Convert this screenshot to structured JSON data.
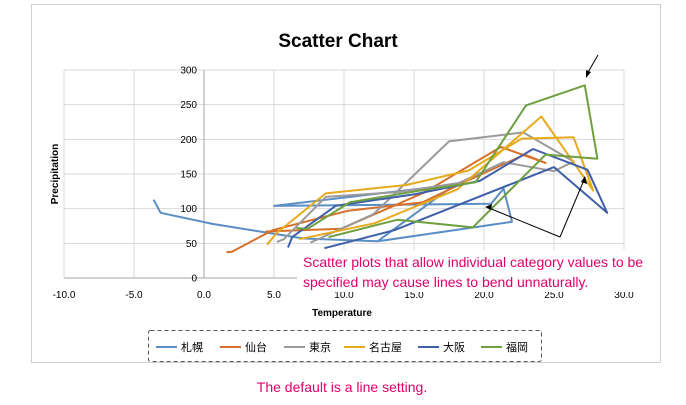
{
  "chart_data": {
    "type": "scatter",
    "title": "Scatter Chart",
    "xlabel": "Temperature",
    "ylabel": "Precipitation",
    "xlim": [
      -10,
      30
    ],
    "ylim": [
      0,
      300
    ],
    "xticks": [
      -10,
      -5,
      0,
      5,
      10,
      15,
      20,
      25,
      30
    ],
    "yticks": [
      0,
      50,
      100,
      150,
      200,
      250,
      300
    ],
    "xtick_labels": [
      "-10.0",
      "-5.0",
      "0.0",
      "5.0",
      "10.0",
      "15.0",
      "20.0",
      "25.0",
      "30.0"
    ],
    "ytick_labels": [
      "0",
      "50",
      "100",
      "150",
      "200",
      "250",
      "300"
    ],
    "grid": true,
    "legend_position": "bottom",
    "series": [
      {
        "name": "札幌",
        "color": "#5b8ec4",
        "points": [
          [
            -3.6,
            113
          ],
          [
            -3.1,
            94
          ],
          [
            0.6,
            78
          ],
          [
            7.1,
            57
          ],
          [
            12.4,
            53
          ],
          [
            18.0,
            136
          ],
          [
            17.6,
            134
          ],
          [
            5.0,
            104
          ],
          [
            20.5,
            107
          ],
          [
            21.4,
            129
          ],
          [
            22.0,
            81
          ],
          [
            12.4,
            53
          ]
        ]
      },
      {
        "name": "仙台",
        "color": "#d6702a",
        "points": [
          [
            1.6,
            37
          ],
          [
            2.0,
            38
          ],
          [
            4.9,
            69
          ],
          [
            10.3,
            97
          ],
          [
            15.6,
            109
          ],
          [
            19.2,
            144
          ],
          [
            22.9,
            178
          ],
          [
            24.4,
            166
          ],
          [
            21.2,
            189
          ],
          [
            15.7,
            123
          ],
          [
            9.8,
            71
          ],
          [
            4.4,
            67
          ]
        ]
      },
      {
        "name": "東京",
        "color": "#9a9a9a",
        "points": [
          [
            5.2,
            52
          ],
          [
            5.7,
            56
          ],
          [
            8.7,
            117
          ],
          [
            13.9,
            124
          ],
          [
            18.2,
            137
          ],
          [
            21.4,
            167
          ],
          [
            25.0,
            154
          ],
          [
            26.4,
            168
          ],
          [
            22.8,
            210
          ],
          [
            17.5,
            197
          ],
          [
            12.1,
            92
          ],
          [
            7.6,
            51
          ]
        ]
      },
      {
        "name": "名古屋",
        "color": "#e6aa1c",
        "points": [
          [
            4.5,
            48
          ],
          [
            5.2,
            65
          ],
          [
            8.7,
            122
          ],
          [
            14.4,
            134
          ],
          [
            18.9,
            155
          ],
          [
            22.7,
            201
          ],
          [
            26.4,
            203
          ],
          [
            27.8,
            126
          ],
          [
            24.1,
            233
          ],
          [
            18.1,
            128
          ],
          [
            12.2,
            79
          ],
          [
            6.8,
            56
          ]
        ]
      },
      {
        "name": "大阪",
        "color": "#3f5fa8",
        "points": [
          [
            6.0,
            44
          ],
          [
            6.3,
            59
          ],
          [
            9.4,
            104
          ],
          [
            15.1,
            121
          ],
          [
            19.7,
            140
          ],
          [
            23.5,
            186
          ],
          [
            27.4,
            156
          ],
          [
            28.8,
            94
          ],
          [
            25.0,
            160
          ],
          [
            19.0,
            112
          ],
          [
            13.6,
            69
          ],
          [
            8.6,
            43
          ]
        ]
      },
      {
        "name": "福岡",
        "color": "#6fa040",
        "points": [
          [
            6.6,
            72
          ],
          [
            7.4,
            71
          ],
          [
            10.4,
            109
          ],
          [
            15.1,
            125
          ],
          [
            19.4,
            138
          ],
          [
            23.0,
            249
          ],
          [
            27.2,
            278
          ],
          [
            28.1,
            172
          ],
          [
            24.4,
            178
          ],
          [
            19.2,
            73
          ],
          [
            13.8,
            84
          ],
          [
            8.9,
            59
          ]
        ]
      }
    ],
    "annotation": "Scatter plots that allow individual category values to be specified may cause lines to bend unnaturally."
  },
  "footer_note": "The default is a line setting."
}
